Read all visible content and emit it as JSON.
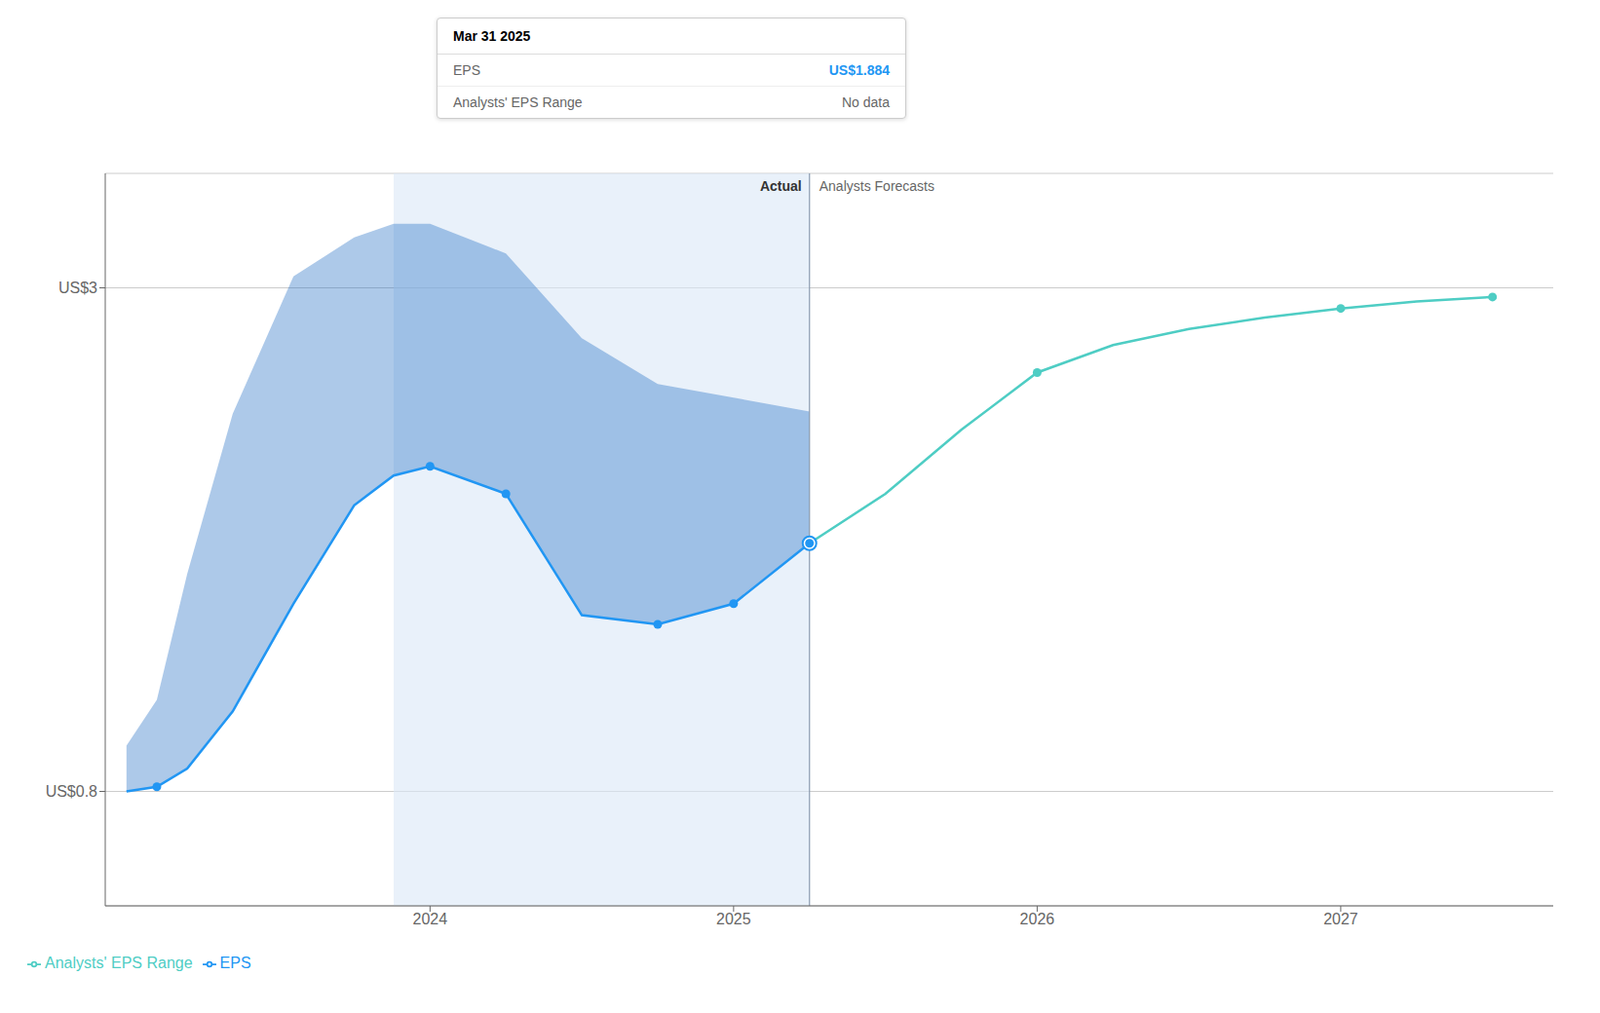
{
  "chart_data": {
    "type": "line",
    "xlim": [
      2022.93,
      2027.7
    ],
    "xticks": [
      2024,
      2025,
      2026,
      2027
    ],
    "ylim": [
      0.3,
      3.5
    ],
    "yticks": [
      {
        "value": 3.0,
        "label": "US$3"
      },
      {
        "value": 0.8,
        "label": "US$0.8"
      }
    ],
    "grid": true,
    "series": [
      {
        "name": "EPS",
        "color": "#2196F3",
        "x": [
          2023.0,
          2023.1,
          2023.2,
          2023.35,
          2023.55,
          2023.75,
          2023.88,
          2024.0,
          2024.25,
          2024.5,
          2024.75,
          2025.0,
          2025.25
        ],
        "values": [
          0.8,
          0.82,
          0.9,
          1.15,
          1.62,
          2.05,
          2.18,
          2.22,
          2.1,
          1.57,
          1.53,
          1.62,
          1.884
        ],
        "marked_x": [
          2023.1,
          2024.0,
          2024.25,
          2024.75,
          2025.0,
          2025.25
        ]
      },
      {
        "name": "Analysts' EPS Range",
        "color": "#4ECDC4",
        "x": [
          2025.25,
          2025.5,
          2025.75,
          2026.0,
          2026.25,
          2026.5,
          2026.75,
          2027.0,
          2027.25,
          2027.5
        ],
        "values": [
          1.884,
          2.1,
          2.38,
          2.63,
          2.75,
          2.82,
          2.87,
          2.91,
          2.94,
          2.96
        ],
        "marked_x": [
          2026.0,
          2027.0,
          2027.5
        ]
      }
    ],
    "band": {
      "color": "#1565C0",
      "x": [
        2023.0,
        2023.1,
        2023.2,
        2023.35,
        2023.55,
        2023.75,
        2023.88,
        2024.0,
        2024.25,
        2024.5,
        2024.75,
        2025.0,
        2025.25
      ],
      "lower": [
        0.8,
        0.82,
        0.9,
        1.15,
        1.62,
        2.05,
        2.18,
        2.22,
        2.1,
        1.57,
        1.53,
        1.62,
        1.884
      ],
      "upper": [
        1.0,
        1.2,
        1.75,
        2.45,
        3.05,
        3.22,
        3.28,
        3.28,
        3.15,
        2.78,
        2.58,
        2.52,
        2.46
      ]
    },
    "highlight": [
      2023.88,
      2025.25
    ],
    "divider": {
      "x": 2025.25,
      "left_label": "Actual",
      "right_label": "Analysts Forecasts"
    },
    "tooltip": {
      "title": "Mar 31 2025",
      "rows": [
        {
          "label": "EPS",
          "value": "US$1.884"
        },
        {
          "label": "Analysts' EPS Range",
          "value": "No data"
        }
      ]
    }
  }
}
